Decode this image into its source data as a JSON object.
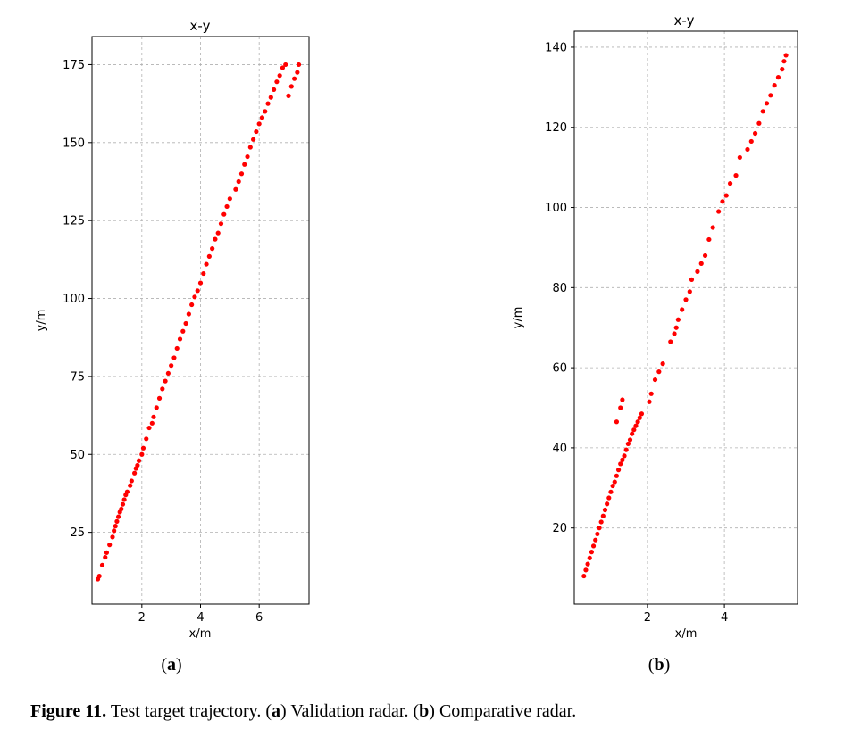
{
  "caption": {
    "label": "Figure 11.",
    "text_1": " Test target trajectory. (",
    "a": "a",
    "text_2": ") Validation radar. (",
    "b": "b",
    "text_3": ") Comparative radar."
  },
  "colors": {
    "points": "#ff0000",
    "grid": "#b0b0b0"
  },
  "chart_data": [
    {
      "type": "scatter",
      "panel": "a",
      "title": "x-y",
      "xlabel": "x/m",
      "ylabel": "y/m",
      "xlim": [
        0.3,
        7.7
      ],
      "ylim": [
        2,
        184
      ],
      "xticks": [
        2,
        4,
        6
      ],
      "yticks": [
        25,
        50,
        75,
        100,
        125,
        150,
        175
      ],
      "grid": true,
      "sublabel": "a",
      "x": [
        0.5,
        0.55,
        0.65,
        0.75,
        0.8,
        0.9,
        1.0,
        1.05,
        1.1,
        1.15,
        1.2,
        1.25,
        1.3,
        1.35,
        1.4,
        1.45,
        1.5,
        1.6,
        1.65,
        1.75,
        1.8,
        1.85,
        1.9,
        2.0,
        2.05,
        2.15,
        2.25,
        2.35,
        2.4,
        2.5,
        2.6,
        2.7,
        2.8,
        2.9,
        3.0,
        3.1,
        3.2,
        3.3,
        3.4,
        3.5,
        3.6,
        3.7,
        3.8,
        3.9,
        4.0,
        4.1,
        4.2,
        4.3,
        4.4,
        4.5,
        4.6,
        4.7,
        4.8,
        4.9,
        5.0,
        5.2,
        5.3,
        5.4,
        5.5,
        5.6,
        5.7,
        5.8,
        5.9,
        6.0,
        6.1,
        6.2,
        6.3,
        6.4,
        6.5,
        6.6,
        6.7,
        6.8,
        6.9,
        7.0,
        7.1,
        7.2,
        7.3,
        7.35
      ],
      "y": [
        10.0,
        11.0,
        14.5,
        17.0,
        18.5,
        21.0,
        23.5,
        25.5,
        27.0,
        28.5,
        30.0,
        31.5,
        32.5,
        34.0,
        35.5,
        37.0,
        38.0,
        40.0,
        41.5,
        44.0,
        45.5,
        46.5,
        48.0,
        50.0,
        52.0,
        55.0,
        58.5,
        60.0,
        62.0,
        65.0,
        68.0,
        71.0,
        73.5,
        76.0,
        78.5,
        81.0,
        84.0,
        87.0,
        89.5,
        92.0,
        95.0,
        98.0,
        100.5,
        102.5,
        105.0,
        108.0,
        111.0,
        113.5,
        116.0,
        119.0,
        121.0,
        124.0,
        127.0,
        129.5,
        132.0,
        135.0,
        137.5,
        140.0,
        143.0,
        145.5,
        148.5,
        151.0,
        153.5,
        156.0,
        158.0,
        160.0,
        162.5,
        164.5,
        167.0,
        169.5,
        171.5,
        174.0,
        175.0,
        165.0,
        168.0,
        170.5,
        172.5,
        175.0
      ]
    },
    {
      "type": "scatter",
      "panel": "b",
      "title": "x-y",
      "xlabel": "x/m",
      "ylabel": "y/m",
      "xlim": [
        0.1,
        5.9
      ],
      "ylim": [
        1,
        144
      ],
      "xticks": [
        2,
        4
      ],
      "yticks": [
        20,
        40,
        60,
        80,
        100,
        120,
        140
      ],
      "grid": true,
      "sublabel": "b",
      "x": [
        0.35,
        0.4,
        0.45,
        0.5,
        0.55,
        0.6,
        0.65,
        0.7,
        0.75,
        0.8,
        0.85,
        0.9,
        0.95,
        1.0,
        1.05,
        1.1,
        1.15,
        1.2,
        1.25,
        1.3,
        1.35,
        1.4,
        1.45,
        1.5,
        1.55,
        1.6,
        1.65,
        1.7,
        1.75,
        1.8,
        1.85,
        1.2,
        1.3,
        1.35,
        2.05,
        2.1,
        2.2,
        2.3,
        2.4,
        2.6,
        2.7,
        2.75,
        2.8,
        2.9,
        3.0,
        3.1,
        3.15,
        3.3,
        3.4,
        3.5,
        3.6,
        3.7,
        3.85,
        3.95,
        4.05,
        4.15,
        4.3,
        4.4,
        4.6,
        4.7,
        4.8,
        4.9,
        5.0,
        5.1,
        5.2,
        5.3,
        5.4,
        5.5,
        5.55,
        5.6
      ],
      "y": [
        8.0,
        9.5,
        11.0,
        12.5,
        14.0,
        15.5,
        17.0,
        18.5,
        20.0,
        21.5,
        23.0,
        24.5,
        26.0,
        27.5,
        29.0,
        30.5,
        31.5,
        33.0,
        34.5,
        36.0,
        37.0,
        38.0,
        39.5,
        41.0,
        42.0,
        43.5,
        44.5,
        45.5,
        46.5,
        47.5,
        48.5,
        46.5,
        50.0,
        52.0,
        51.5,
        53.5,
        57.0,
        59.0,
        61.0,
        66.5,
        68.5,
        70.0,
        72.0,
        74.5,
        77.0,
        79.0,
        82.0,
        84.0,
        86.0,
        88.0,
        92.0,
        95.0,
        99.0,
        101.5,
        103.0,
        106.0,
        108.0,
        112.5,
        114.5,
        116.5,
        118.5,
        121.0,
        124.0,
        126.0,
        128.0,
        130.5,
        132.5,
        134.5,
        136.5,
        138.0
      ]
    }
  ]
}
